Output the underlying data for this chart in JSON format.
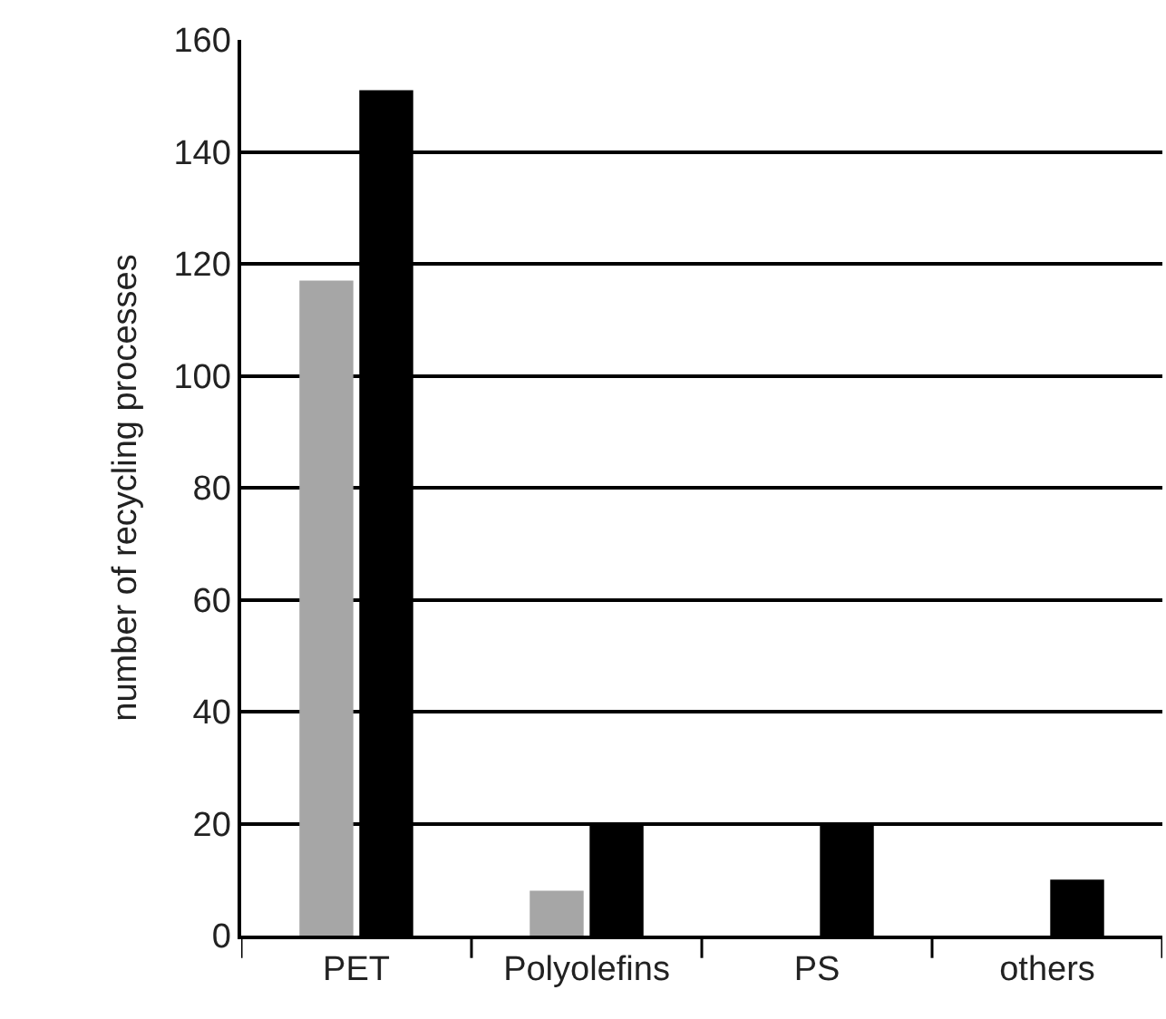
{
  "chart_data": {
    "type": "bar",
    "ylabel": "number of recycling processes",
    "categories": [
      "PET",
      "Polyolefins",
      "PS",
      "others"
    ],
    "series": [
      {
        "color": "#a6a6a6",
        "values": [
          117,
          8,
          null,
          null
        ]
      },
      {
        "color": "#000000",
        "values": [
          151,
          20,
          20,
          10
        ]
      }
    ],
    "ylim": [
      0,
      160
    ],
    "yticks": [
      0,
      20,
      40,
      60,
      80,
      100,
      120,
      140,
      160
    ],
    "grid": "y"
  }
}
